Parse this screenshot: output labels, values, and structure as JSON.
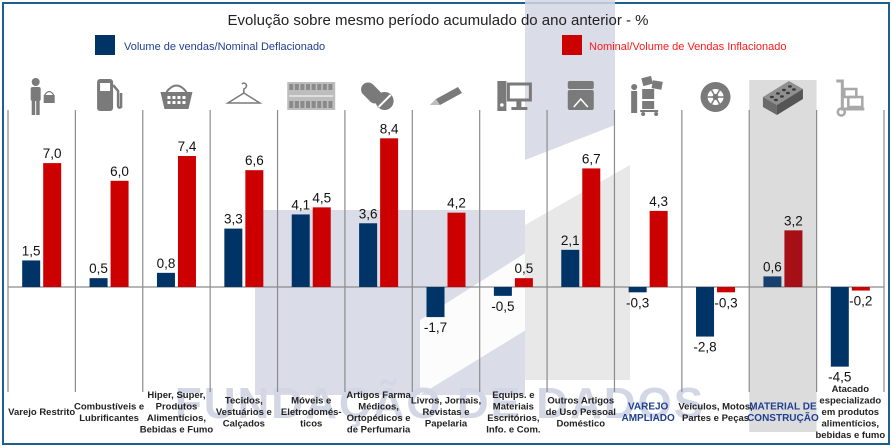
{
  "chart_data": {
    "type": "bar",
    "title": "Evolução sobre mesmo período acumulado do ano anterior - %",
    "xlabel": "",
    "ylabel": "",
    "ylim": [
      -5,
      9
    ],
    "grid": true,
    "legend_position": "top",
    "categories": [
      "Varejo Restrito",
      "Combustíveis e Lubrificantes",
      "Hiper, Super, Produtos Alimentícios, Bebidas e Fumo",
      "Tecidos, Vestuários e Calçados",
      "Móveis e Eletrodomés-ticos",
      "Artigos Farma Médicos, Ortopédicos e de Perfumaria",
      "Livros, Jornais, Revistas e Papelaria",
      "Equips. e Materiais Escritórios, Info. e Com.",
      "Outros Artigos de Uso Pessoal Doméstico",
      "VAREJO AMPLIADO",
      "Veículos, Motos, Partes e Peças",
      "MATERIAL DE CONSTRUÇÃO",
      "Atacado especializado em produtos alimentícios, bebidas e fumo"
    ],
    "category_lines": [
      [
        "Varejo Restrito"
      ],
      [
        "Combustíveis e",
        "Lubrificantes"
      ],
      [
        "Hiper, Super,",
        "Produtos",
        "Alimentícios,",
        "Bebidas e Fumo"
      ],
      [
        "Tecidos,",
        "Vestuários e",
        "Calçados"
      ],
      [
        "Móveis e",
        "Eletrodomés-",
        "ticos"
      ],
      [
        "Artigos Farma",
        "Médicos,",
        "Ortopédicos e",
        "de Perfumaria"
      ],
      [
        "Livros, Jornais,",
        "Revistas e",
        "Papelaria"
      ],
      [
        "Equips. e",
        "Materiais",
        "Escritórios,",
        "Info. e Com."
      ],
      [
        "Outros Artigos",
        "de Uso Pessoal",
        "Doméstico"
      ],
      [
        "VAREJO",
        "AMPLIADO"
      ],
      [
        "Veículos, Motos,",
        "Partes e Peças"
      ],
      [
        "MATERIAL DE",
        "CONSTRUÇÃO"
      ],
      [
        "Atacado",
        "especializado",
        "em produtos",
        "alimentícios,",
        "bebidas e fumo"
      ]
    ],
    "highlighted_categories": [
      "VAREJO AMPLIADO",
      "MATERIAL DE CONSTRUÇÃO"
    ],
    "shaded_category": "MATERIAL DE CONSTRUÇÃO",
    "icons": [
      "shopper-with-basket-icon",
      "fuel-pump-icon",
      "shopping-basket-icon",
      "clothes-hanger-icon",
      "appliances-store-icon",
      "pills-icon",
      "pencil-icon",
      "desktop-computer-icon",
      "jewelry-box-icon",
      "shopper-with-cart-boxes-icon",
      "tire-icon",
      "brick-icon",
      "hand-truck-icon"
    ],
    "series": [
      {
        "name": "Volume de vendas/Nominal  Deflacionado",
        "color": "#003366",
        "values": [
          1.5,
          0.5,
          0.8,
          3.3,
          4.1,
          3.6,
          -1.7,
          -0.5,
          2.1,
          -0.3,
          -2.8,
          0.6,
          -4.5
        ],
        "labels": [
          "1,5",
          "0,5",
          "0,8",
          "3,3",
          "4,1",
          "3,6",
          "-1,7",
          "-0,5",
          "2,1",
          "-0,3",
          "-2,8",
          "0,6",
          "-4,5"
        ]
      },
      {
        "name": "Nominal/Volume de Vendas Inflacionado",
        "color": "#cc0000",
        "values": [
          7.0,
          6.0,
          7.4,
          6.6,
          4.5,
          8.4,
          4.2,
          0.5,
          6.7,
          4.3,
          -0.3,
          3.2,
          -0.2
        ],
        "labels": [
          "7,0",
          "6,0",
          "7,4",
          "6,6",
          "4,5",
          "8,4",
          "4,2",
          "0,5",
          "6,7",
          "4,3",
          "-0,3",
          "3,2",
          "-0,2"
        ]
      }
    ],
    "watermark": "FUNDAÇÃO DE DADOS"
  },
  "colors": {
    "frame": "#1f5f8b",
    "series_blue": "#003366",
    "series_red": "#cc0000",
    "series_red_highlight": "#a50f15",
    "legend_blue_text": "#1f3f8f",
    "legend_red_text": "#ff1a1a",
    "highlight_text": "#1f3f8f",
    "shaded_column": "#dcdcdc",
    "icon_gray": "#7a7a7a",
    "watermark": "#d3d6e4"
  }
}
